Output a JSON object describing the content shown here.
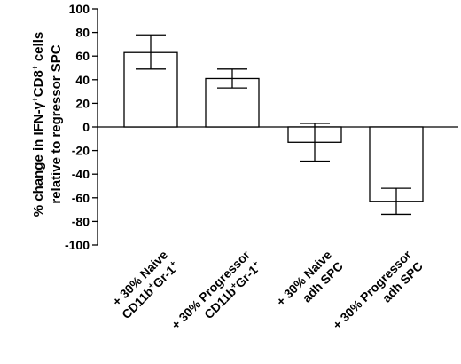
{
  "chart_data": {
    "type": "bar",
    "ylabel_line1": "% change in IFN-γ",
    "ylabel_sup1": "+",
    "ylabel_mid": "CD8",
    "ylabel_sup2": "+",
    "ylabel_end": " cells",
    "ylabel_line2": "relative to regressor SPC",
    "ylim": [
      -100,
      100
    ],
    "yticks": [
      "100",
      "80",
      "60",
      "40",
      "20",
      "0",
      "-20",
      "-40",
      "-60",
      "-80",
      "-100"
    ],
    "grid": false,
    "categories": [
      {
        "line1": "+ 30% Naive",
        "line2_parts": [
          "CD11b",
          "+",
          "Gr-1",
          "+"
        ],
        "value": 63,
        "err_low": 49,
        "err_high": 78
      },
      {
        "line1": "+ 30% Progressor",
        "line2_parts": [
          "CD11b",
          "+",
          "Gr-1",
          "+"
        ],
        "value": 41,
        "err_low": 33,
        "err_high": 49
      },
      {
        "line1": "+ 30% Naive",
        "line2_parts": [
          "adh SPC"
        ],
        "value": -13,
        "err_low": -29,
        "err_high": 3
      },
      {
        "line1": "+ 30% Progressor",
        "line2_parts": [
          "adh SPC"
        ],
        "value": -63,
        "err_low": -74,
        "err_high": -52
      }
    ]
  }
}
